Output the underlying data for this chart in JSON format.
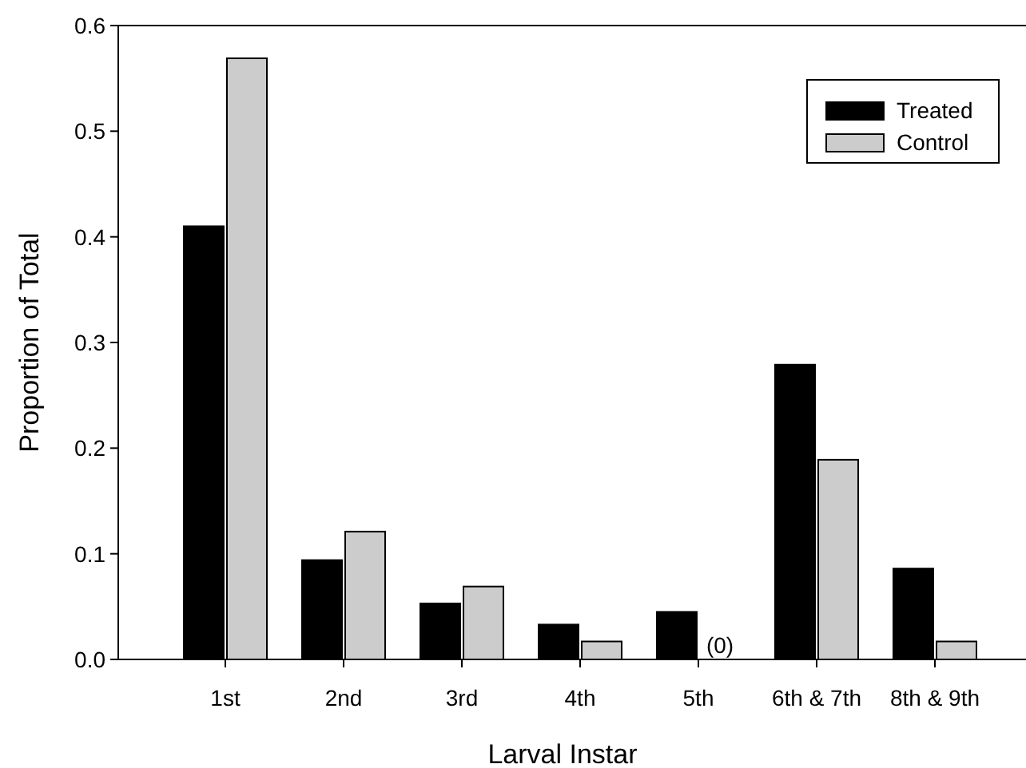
{
  "chart_data": {
    "type": "bar",
    "xlabel": "Larval Instar",
    "ylabel": "Proportion of Total",
    "categories": [
      "1st",
      "2nd",
      "3rd",
      "4th",
      "5th",
      "6th & 7th",
      "8th & 9th"
    ],
    "series": [
      {
        "name": "Treated",
        "color": "#000000",
        "values": [
          0.41,
          0.094,
          0.053,
          0.033,
          0.045,
          0.279,
          0.086
        ]
      },
      {
        "name": "Control",
        "color": "#cccccc",
        "values": [
          0.569,
          0.121,
          0.069,
          0.017,
          0,
          0.189,
          0.017
        ]
      }
    ],
    "ylim": [
      0,
      0.6
    ],
    "yticks": [
      {
        "value": 0,
        "label": "0.0"
      },
      0.1,
      0.2,
      0.3,
      0.4,
      0.5,
      0.6
    ],
    "annotations": [
      {
        "text": "(0)",
        "x": "5th",
        "y": 0
      }
    ],
    "grid": false,
    "legend": "top right"
  }
}
